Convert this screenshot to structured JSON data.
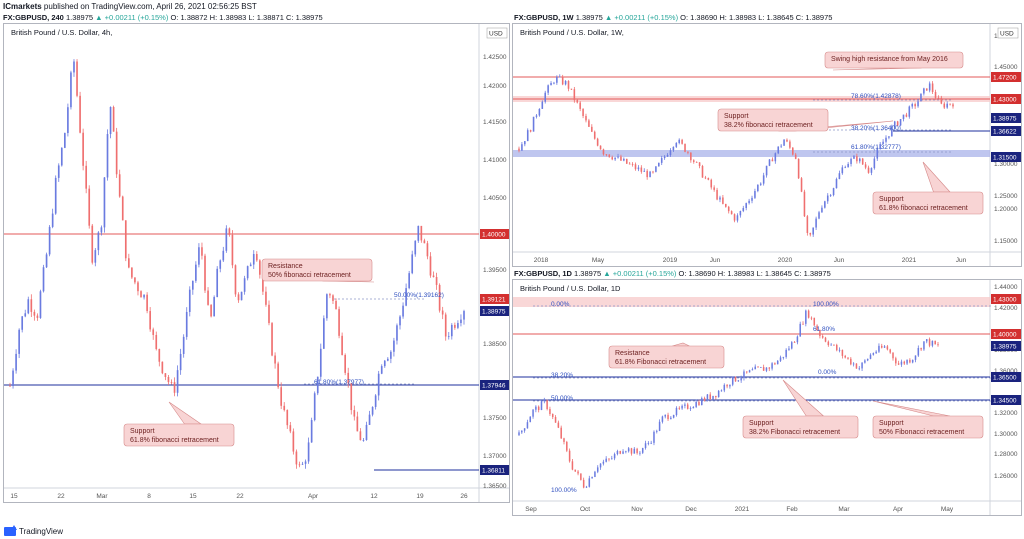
{
  "publish_line": {
    "author": "ICmarkets",
    "text": "published on TradingView.com, April 26, 2021 02:56:25 BST"
  },
  "colors": {
    "bull": "#6a7be0",
    "bear": "#ef6f6f",
    "red_line": "#e35a5a",
    "blue_line": "#1c2f9c",
    "zone": "#f7c9c9",
    "blue_zone": "#a9b3ea",
    "fib": "#4a78d8",
    "callout_fill": "#f8d4d4",
    "callout_border": "#d68a8a",
    "price_box_dark": "#1a237e",
    "price_box_red": "#d32f2f"
  },
  "panels": [
    {
      "id": "h4",
      "header": {
        "symbol": "FX:GBPUSD, 240",
        "last": "1.38975",
        "change": "▲ +0.00211 (+0.15%)",
        "o": "O: 1.38872",
        "h": "H: 1.38983",
        "l": "L: 1.38871",
        "c": "C: 1.38975"
      },
      "title": "British Pound / U.S. Dollar, 4h,",
      "currency": "USD",
      "x_labels": [
        "15",
        "22",
        "Mar",
        "8",
        "15",
        "22",
        "Apr",
        "12",
        "19",
        "26"
      ],
      "y_ticks": [
        "1.42500",
        "1.42000",
        "1.41500",
        "1.41000",
        "1.40500",
        "1.39500",
        "1.38500",
        "1.37500",
        "1.37000",
        "1.36500"
      ],
      "y_range": [
        1.364,
        1.4255
      ],
      "callouts": [
        {
          "lines": [
            "Resistance",
            "50% fibonacci retracement"
          ]
        },
        {
          "lines": [
            "Support",
            "61.8% fibonacci retracement"
          ]
        }
      ],
      "fib_labels": [
        "50.00%(1.39162)",
        "61.80%(1.37977)"
      ],
      "price_labels": [
        {
          "text": "1.40000",
          "value": 1.4,
          "style": "red"
        },
        {
          "text": "1.39121",
          "value": 1.39121,
          "style": "red"
        },
        {
          "text": "1.38975",
          "value": 1.38975,
          "style": "dark"
        },
        {
          "text": "1.37946",
          "value": 1.37946,
          "style": "dark"
        },
        {
          "text": "1.36811",
          "value": 1.36811,
          "style": "dark"
        }
      ]
    },
    {
      "id": "w1",
      "header": {
        "symbol": "FX:GBPUSD, 1W",
        "last": "1.38975",
        "change": "▲ +0.00211 (+0.15%)",
        "o": "O: 1.38690",
        "h": "H: 1.38983",
        "l": "L: 1.38645",
        "c": "C: 1.38975"
      },
      "title": "British Pound / U.S. Dollar, 1W,",
      "currency": "USD",
      "x_labels": [
        "2018",
        "May",
        "2019",
        "Jun",
        "2020",
        "Jun",
        "2021",
        "Jun"
      ],
      "y_ticks": [
        "1.50000",
        "1.45000",
        "1.35000",
        "1.30000",
        "1.25000",
        "1.20000",
        "1.15000"
      ],
      "y_range": [
        1.14,
        1.505
      ],
      "callouts": [
        {
          "lines": [
            "Swing high resistance from May 2016"
          ]
        },
        {
          "lines": [
            "Support",
            "38.2% fibonacci retracement"
          ]
        },
        {
          "lines": [
            "Support",
            "61.8% fibonacci retracement"
          ]
        }
      ],
      "fib_labels": [
        "78.60%(1.42878)",
        "38.20%(1.36400)",
        "61.80%(1.32777)"
      ],
      "price_labels": [
        {
          "text": "1.47200",
          "value": 1.472,
          "style": "red"
        },
        {
          "text": "1.43000",
          "value": 1.43,
          "style": "red"
        },
        {
          "text": "1.38975",
          "value": 1.38975,
          "style": "dark"
        },
        {
          "text": "1.36622",
          "value": 1.36622,
          "style": "dark"
        },
        {
          "text": "1.31500",
          "value": 1.315,
          "style": "dark"
        }
      ]
    },
    {
      "id": "d1",
      "header": {
        "symbol": "FX:GBPUSD, 1D",
        "last": "1.38975",
        "change": "▲ +0.00211 (+0.15%)",
        "o": "O: 1.38690",
        "h": "H: 1.38983",
        "l": "L: 1.38645",
        "c": "C: 1.38975"
      },
      "title": "British Pound / U.S. Dollar, 1D",
      "currency": "",
      "x_labels": [
        "Sep",
        "Oct",
        "Nov",
        "Dec",
        "2021",
        "Feb",
        "Mar",
        "Apr",
        "May"
      ],
      "y_ticks": [
        "1.44000",
        "1.42000",
        "1.38000",
        "1.36000",
        "1.32000",
        "1.30000",
        "1.28000",
        "1.26000"
      ],
      "y_range": [
        1.258,
        1.442
      ],
      "callouts": [
        {
          "lines": [
            "Resistance",
            "61.8% Fibonacci retracement"
          ]
        },
        {
          "lines": [
            "Support",
            "38.2% Fibonacci retracement"
          ]
        },
        {
          "lines": [
            "Support",
            "50% Fibonacci retracement"
          ]
        }
      ],
      "fib_labels": [
        "0.00%",
        "100.00%",
        "61.80%",
        "0.00%",
        "38.20%",
        "50.00%",
        "100.00%"
      ],
      "price_labels": [
        {
          "text": "1.43000",
          "value": 1.43,
          "style": "red"
        },
        {
          "text": "1.40000",
          "value": 1.4,
          "style": "red"
        },
        {
          "text": "1.38975",
          "value": 1.38975,
          "style": "dark"
        },
        {
          "text": "1.36500",
          "value": 1.365,
          "style": "dark"
        },
        {
          "text": "1.34500",
          "value": 1.345,
          "style": "dark"
        }
      ]
    }
  ],
  "branding": {
    "name": "TradingView"
  },
  "chart_data": [
    {
      "type": "candlestick",
      "symbol": "FX:GBPUSD",
      "timeframe": "4h",
      "ylim": [
        1.364,
        1.4255
      ],
      "x_ticks": [
        "15",
        "22",
        "Mar",
        "8",
        "15",
        "22",
        "Apr",
        "12",
        "19",
        "26"
      ],
      "path": [
        1.378,
        1.386,
        1.39,
        1.388,
        1.396,
        1.406,
        1.413,
        1.424,
        1.41,
        1.396,
        1.4,
        1.418,
        1.405,
        1.394,
        1.392,
        1.39,
        1.383,
        1.38,
        1.377,
        1.384,
        1.392,
        1.398,
        1.386,
        1.395,
        1.4,
        1.39,
        1.393,
        1.398,
        1.39,
        1.382,
        1.375,
        1.37,
        1.366,
        1.37,
        1.381,
        1.392,
        1.388,
        1.38,
        1.372,
        1.37,
        1.376,
        1.382,
        1.383,
        1.388,
        1.394,
        1.4,
        1.396,
        1.391,
        1.385,
        1.387,
        1.389
      ],
      "levels": [
        1.4,
        1.39162,
        1.37977
      ],
      "last": 1.38975
    },
    {
      "type": "candlestick",
      "symbol": "FX:GBPUSD",
      "timeframe": "1W",
      "ylim": [
        1.14,
        1.505
      ],
      "x_ticks": [
        "2018",
        "May",
        "2019",
        "Jun",
        "2020",
        "Jun",
        "2021",
        "Jun"
      ],
      "path": [
        1.315,
        1.35,
        1.4,
        1.43,
        1.42,
        1.38,
        1.34,
        1.31,
        1.3,
        1.29,
        1.28,
        1.27,
        1.3,
        1.33,
        1.31,
        1.28,
        1.25,
        1.22,
        1.2,
        1.23,
        1.26,
        1.3,
        1.33,
        1.3,
        1.16,
        1.22,
        1.25,
        1.29,
        1.3,
        1.28,
        1.32,
        1.35,
        1.37,
        1.39,
        1.42,
        1.385,
        1.39
      ],
      "levels": [
        1.472,
        1.43,
        1.366,
        1.315
      ],
      "last": 1.38975
    },
    {
      "type": "candlestick",
      "symbol": "FX:GBPUSD",
      "timeframe": "1D",
      "ylim": [
        1.258,
        1.442
      ],
      "x_ticks": [
        "Sep",
        "Oct",
        "Nov",
        "Dec",
        "2021",
        "Feb",
        "Mar",
        "Apr",
        "May"
      ],
      "path": [
        1.315,
        1.335,
        1.343,
        1.32,
        1.29,
        1.272,
        1.29,
        1.295,
        1.305,
        1.3,
        1.31,
        1.33,
        1.335,
        1.34,
        1.345,
        1.35,
        1.36,
        1.365,
        1.37,
        1.372,
        1.38,
        1.395,
        1.42,
        1.4,
        1.39,
        1.38,
        1.372,
        1.385,
        1.39,
        1.375,
        1.38,
        1.395,
        1.39
      ],
      "levels": [
        1.43,
        1.4,
        1.365,
        1.345
      ],
      "last": 1.38975
    }
  ]
}
